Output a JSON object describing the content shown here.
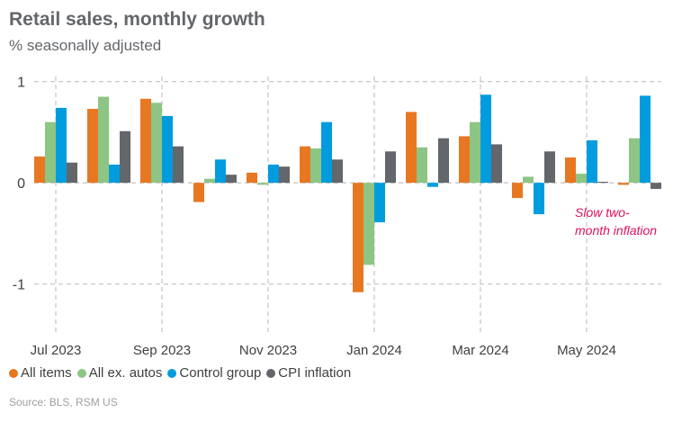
{
  "chart_data": {
    "type": "bar",
    "title": "Retail sales, monthly growth",
    "subtitle": "% seasonally adjusted",
    "source": "Source: BLS, RSM US",
    "categories": [
      "Jul 2023",
      "Aug 2023",
      "Sep 2023",
      "Oct 2023",
      "Nov 2023",
      "Dec 2023",
      "Jan 2024",
      "Feb 2024",
      "Mar 2024",
      "Apr 2024",
      "May 2024",
      "Jun 2024"
    ],
    "x_tick_labels": [
      "Jul 2023",
      "Sep 2023",
      "Nov 2023",
      "Jan 2024",
      "Mar 2024",
      "May 2024"
    ],
    "y_ticks": [
      -1,
      0,
      1
    ],
    "ylim": [
      -1.5,
      1.05
    ],
    "grid": true,
    "legend_position": "bottom",
    "series": [
      {
        "name": "All items",
        "color": "#e87722",
        "values": [
          0.26,
          0.73,
          0.83,
          -0.19,
          0.1,
          0.36,
          -1.08,
          0.7,
          0.46,
          -0.15,
          0.25,
          -0.02
        ]
      },
      {
        "name": "All ex. autos",
        "color": "#8dc584",
        "values": [
          0.6,
          0.85,
          0.79,
          0.04,
          -0.02,
          0.34,
          -0.81,
          0.35,
          0.6,
          0.06,
          0.09,
          0.44
        ]
      },
      {
        "name": "Control group",
        "color": "#009cde",
        "values": [
          0.74,
          0.18,
          0.66,
          0.23,
          0.18,
          0.6,
          -0.39,
          -0.04,
          0.87,
          -0.31,
          0.42,
          0.86
        ]
      },
      {
        "name": "CPI inflation",
        "color": "#63666a",
        "values": [
          0.2,
          0.51,
          0.36,
          0.08,
          0.16,
          0.23,
          0.31,
          0.44,
          0.38,
          0.31,
          0.01,
          -0.06
        ]
      }
    ],
    "annotation": {
      "text_line1": "Slow two-",
      "text_line2": "month inflation",
      "color": "#e0115f"
    }
  }
}
